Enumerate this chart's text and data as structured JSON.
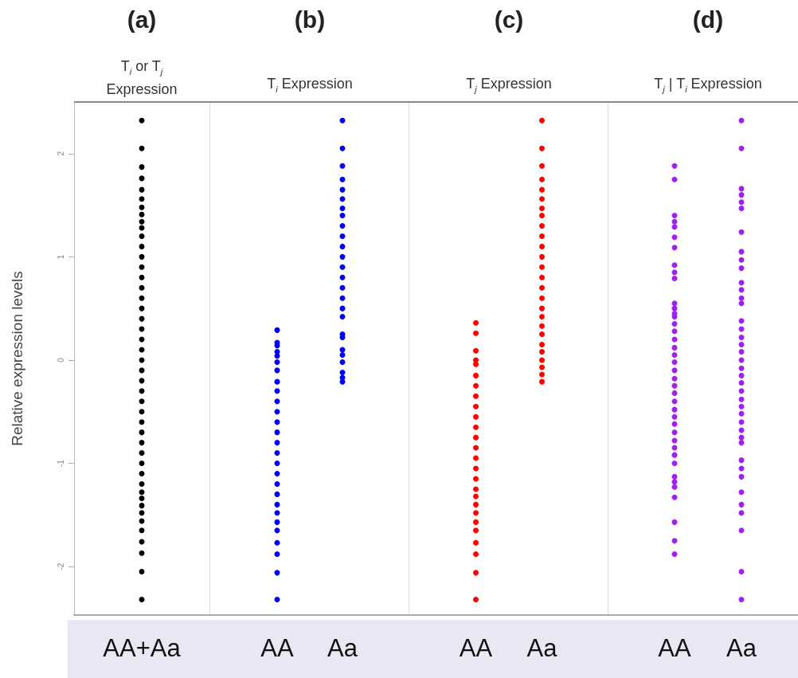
{
  "chart_data": [
    {
      "type": "scatter",
      "title": "(a)",
      "subtitle": "T$_{i}$ or T$_{j}$ Expression",
      "ylabel": "Relative expression levels",
      "categories": [
        "AA+Aa"
      ],
      "ylim": [
        -2.47,
        2.5
      ],
      "yticks": [
        -2,
        -1,
        0,
        1,
        2
      ],
      "marker": "circle",
      "series": [
        {
          "color": "#000000",
          "x": [
            "AA+Aa",
            "AA+Aa",
            "AA+Aa",
            "AA+Aa",
            "AA+Aa",
            "AA+Aa",
            "AA+Aa",
            "AA+Aa",
            "AA+Aa",
            "AA+Aa",
            "AA+Aa",
            "AA+Aa",
            "AA+Aa",
            "AA+Aa",
            "AA+Aa",
            "AA+Aa",
            "AA+Aa",
            "AA+Aa",
            "AA+Aa",
            "AA+Aa",
            "AA+Aa",
            "AA+Aa",
            "AA+Aa",
            "AA+Aa",
            "AA+Aa",
            "AA+Aa",
            "AA+Aa",
            "AA+Aa",
            "AA+Aa",
            "AA+Aa",
            "AA+Aa",
            "AA+Aa",
            "AA+Aa",
            "AA+Aa",
            "AA+Aa",
            "AA+Aa",
            "AA+Aa",
            "AA+Aa",
            "AA+Aa",
            "AA+Aa",
            "AA+Aa",
            "AA+Aa",
            "AA+Aa",
            "AA+Aa",
            "AA+Aa"
          ],
          "values": [
            2.32,
            2.05,
            1.87,
            1.76,
            1.65,
            1.56,
            1.48,
            1.41,
            1.34,
            1.28,
            1.2,
            1.1,
            1.0,
            0.9,
            0.8,
            0.7,
            0.6,
            0.5,
            0.4,
            0.3,
            0.2,
            0.1,
            0.0,
            -0.1,
            -0.2,
            -0.3,
            -0.4,
            -0.5,
            -0.6,
            -0.7,
            -0.8,
            -0.9,
            -1.0,
            -1.1,
            -1.2,
            -1.28,
            -1.34,
            -1.41,
            -1.48,
            -1.56,
            -1.65,
            -1.76,
            -1.87,
            -2.05,
            -2.32
          ]
        }
      ]
    },
    {
      "type": "scatter",
      "title": "(b)",
      "subtitle": "T$_{i}$ Expression",
      "categories": [
        "AA",
        "Aa"
      ],
      "ylim": [
        -2.47,
        2.5
      ],
      "yticks": [
        -2,
        -1,
        0,
        1,
        2
      ],
      "tick_labels": "x",
      "marker": "circle",
      "series": [
        {
          "color": "#0000ff",
          "x": [
            "AA",
            "AA",
            "AA",
            "AA",
            "AA",
            "AA",
            "AA",
            "AA",
            "AA",
            "AA",
            "AA",
            "AA",
            "AA",
            "AA",
            "AA",
            "AA",
            "AA",
            "AA",
            "AA",
            "AA",
            "AA",
            "AA",
            "AA",
            "AA",
            "AA",
            "AA",
            "AA"
          ],
          "values": [
            0.29,
            0.17,
            0.14,
            0.08,
            0.04,
            -0.02,
            -0.1,
            -0.21,
            -0.3,
            -0.4,
            -0.5,
            -0.6,
            -0.7,
            -0.8,
            -0.9,
            -1.0,
            -1.1,
            -1.2,
            -1.3,
            -1.4,
            -1.48,
            -1.57,
            -1.65,
            -1.77,
            -1.88,
            -2.06,
            -2.32
          ]
        },
        {
          "color": "#0000ff",
          "x": [
            "Aa",
            "Aa",
            "Aa",
            "Aa",
            "Aa",
            "Aa",
            "Aa",
            "Aa",
            "Aa",
            "Aa",
            "Aa",
            "Aa",
            "Aa",
            "Aa",
            "Aa",
            "Aa",
            "Aa",
            "Aa",
            "Aa",
            "Aa",
            "Aa",
            "Aa",
            "Aa",
            "Aa",
            "Aa",
            "Aa"
          ],
          "values": [
            2.32,
            2.05,
            1.88,
            1.75,
            1.65,
            1.56,
            1.47,
            1.4,
            1.3,
            1.2,
            1.1,
            1.0,
            0.9,
            0.8,
            0.7,
            0.6,
            0.5,
            0.42,
            0.25,
            0.22,
            0.1,
            0.05,
            -0.02,
            -0.12,
            -0.17,
            -0.21
          ]
        }
      ]
    },
    {
      "type": "scatter",
      "title": "(c)",
      "subtitle": "T$_{j}$ Expression",
      "categories": [
        "AA",
        "Aa"
      ],
      "ylim": [
        -2.47,
        2.5
      ],
      "yticks": [
        -2,
        -1,
        0,
        1,
        2
      ],
      "tick_labels": "x",
      "marker": "circle",
      "series": [
        {
          "color": "#ff0000",
          "x": [
            "AA",
            "AA",
            "AA",
            "AA",
            "AA",
            "AA",
            "AA",
            "AA",
            "AA",
            "AA",
            "AA",
            "AA",
            "AA",
            "AA",
            "AA",
            "AA",
            "AA",
            "AA",
            "AA",
            "AA",
            "AA",
            "AA",
            "AA",
            "AA",
            "AA"
          ],
          "values": [
            0.36,
            0.26,
            0.09,
            0.0,
            -0.04,
            -0.15,
            -0.25,
            -0.35,
            -0.45,
            -0.55,
            -0.65,
            -0.75,
            -0.85,
            -0.95,
            -1.05,
            -1.15,
            -1.25,
            -1.32,
            -1.4,
            -1.48,
            -1.57,
            -1.65,
            -1.77,
            -1.88,
            -2.06
          ]
        },
        {
          "color": "#ff0000",
          "x": [
            "AA",
            "Aa",
            "Aa",
            "Aa",
            "Aa",
            "Aa",
            "Aa",
            "Aa",
            "Aa",
            "Aa",
            "Aa",
            "Aa",
            "Aa",
            "Aa",
            "Aa",
            "Aa",
            "Aa",
            "Aa",
            "Aa",
            "Aa",
            "Aa",
            "Aa",
            "Aa",
            "Aa",
            "Aa",
            "Aa",
            "Aa"
          ],
          "values": [
            -2.32,
            2.32,
            2.05,
            1.88,
            1.75,
            1.65,
            1.56,
            1.47,
            1.4,
            1.3,
            1.2,
            1.1,
            1.0,
            0.9,
            0.8,
            0.7,
            0.6,
            0.5,
            0.42,
            0.33,
            0.25,
            0.15,
            0.08,
            0.0,
            -0.07,
            -0.14,
            -0.21
          ]
        }
      ]
    },
    {
      "type": "scatter",
      "title": "(d)",
      "subtitle": "T$_{j}$ | T$_{i}$ Expression",
      "categories": [
        "AA",
        "Aa"
      ],
      "ylim": [
        -2.47,
        2.5
      ],
      "yticks": [
        -2,
        -1,
        0,
        1,
        2
      ],
      "tick_labels": "x",
      "marker": "circle",
      "series": [
        {
          "color": "#a020f0",
          "x": [
            "AA",
            "AA",
            "AA",
            "AA",
            "AA",
            "AA",
            "AA",
            "AA",
            "AA",
            "AA",
            "AA",
            "AA",
            "AA",
            "AA",
            "AA",
            "AA",
            "AA",
            "AA",
            "AA",
            "AA",
            "AA",
            "AA",
            "AA",
            "AA",
            "AA",
            "AA",
            "AA",
            "AA",
            "AA",
            "AA",
            "AA",
            "AA",
            "AA",
            "AA",
            "AA",
            "AA",
            "AA",
            "AA",
            "AA",
            "AA"
          ],
          "values": [
            1.88,
            1.75,
            1.4,
            1.34,
            1.29,
            1.19,
            1.09,
            0.92,
            0.85,
            0.79,
            0.55,
            0.5,
            0.45,
            0.42,
            0.35,
            0.28,
            0.2,
            0.12,
            0.05,
            -0.02,
            -0.1,
            -0.18,
            -0.25,
            -0.32,
            -0.4,
            -0.48,
            -0.55,
            -0.62,
            -0.7,
            -0.78,
            -0.85,
            -0.92,
            -1.0,
            -1.13,
            -1.18,
            -1.23,
            -1.33,
            -1.57,
            -1.75,
            -1.88
          ]
        },
        {
          "color": "#a020f0",
          "x": [
            "Aa",
            "Aa",
            "Aa",
            "Aa",
            "Aa",
            "Aa",
            "Aa",
            "Aa",
            "Aa",
            "Aa",
            "Aa",
            "Aa",
            "Aa",
            "Aa",
            "Aa",
            "Aa",
            "Aa",
            "Aa",
            "Aa",
            "Aa",
            "Aa",
            "Aa",
            "Aa",
            "Aa",
            "Aa",
            "Aa",
            "Aa",
            "Aa",
            "Aa",
            "Aa",
            "Aa",
            "Aa",
            "Aa",
            "Aa",
            "Aa",
            "Aa",
            "Aa",
            "Aa",
            "Aa",
            "Aa"
          ],
          "values": [
            2.32,
            2.05,
            1.66,
            1.6,
            1.53,
            1.47,
            1.24,
            1.05,
            0.97,
            0.89,
            0.75,
            0.68,
            0.6,
            0.55,
            0.38,
            0.3,
            0.22,
            0.15,
            0.08,
            0.0,
            -0.08,
            -0.15,
            -0.22,
            -0.3,
            -0.38,
            -0.45,
            -0.52,
            -0.6,
            -0.68,
            -0.75,
            -0.8,
            -0.97,
            -1.05,
            -1.13,
            -1.28,
            -1.4,
            -1.48,
            -1.65,
            -2.05,
            -2.32
          ]
        }
      ]
    }
  ]
}
